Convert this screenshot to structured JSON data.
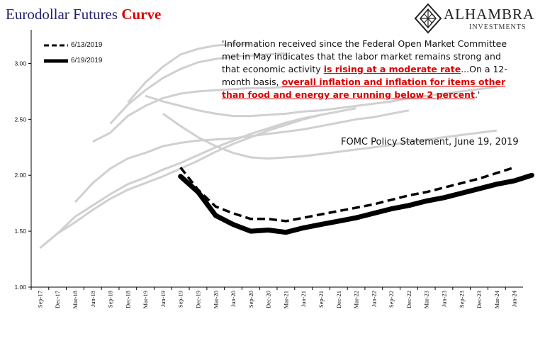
{
  "header": {
    "title_main": "Eurodollar Futures",
    "title_accent": "Curve"
  },
  "brand": {
    "name": "ALHAMBRA",
    "tagline": "INVESTMENTS",
    "logo_icon": "diamond-lattice-icon"
  },
  "annotation": {
    "quote_part1": "'Information received since the Federal Open Market Committee met in May indicates that the labor market remains strong and that economic activity ",
    "quote_highlight1": "is rising at a moderate rate",
    "quote_part2": "...On a 12-month basis, ",
    "quote_highlight2": "overall inflation and inflation for items other than food and energy are running below 2 percent",
    "quote_part3": ".'",
    "source": "FOMC Policy Statement,  June 19, 2019"
  },
  "colors": {
    "title": "#1f1f6e",
    "accent": "#d90000",
    "history": "#d0d0d0",
    "main": "#000000"
  },
  "chart_data": {
    "type": "line",
    "ylim": [
      1.0,
      3.25
    ],
    "y_ticks": [
      "1.00",
      "1.50",
      "2.00",
      "2.50",
      "3.00"
    ],
    "x_categories": [
      "Sep-17",
      "Dec-17",
      "Mar-18",
      "Jun-18",
      "Sep-18",
      "Dec-18",
      "Mar-19",
      "Jun-19",
      "Sep-19",
      "Dec-19",
      "Mar-20",
      "Jun-20",
      "Sep-20",
      "Dec-20",
      "Mar-21",
      "Jun-21",
      "Sep-21",
      "Dec-21",
      "Mar-22",
      "Jun-22",
      "Sep-22",
      "Dec-22",
      "Mar-23",
      "Jun-23",
      "Sep-23",
      "Dec-23",
      "Mar-24",
      "Jun-24"
    ],
    "legend": [
      "6/13/2019",
      "6/19/2019"
    ],
    "series": [
      {
        "name": "6/13/2019",
        "style": "dashed",
        "start_index": 8,
        "values": [
          2.07,
          1.87,
          1.72,
          1.66,
          1.61,
          1.61,
          1.59,
          1.62,
          1.65,
          1.68,
          1.71,
          1.74,
          1.78,
          1.82,
          1.85,
          1.89,
          1.93,
          1.97,
          2.02,
          2.07
        ]
      },
      {
        "name": "6/19/2019",
        "style": "solid",
        "start_index": 8,
        "values": [
          1.99,
          1.85,
          1.64,
          1.56,
          1.5,
          1.51,
          1.49,
          1.53,
          1.56,
          1.59,
          1.62,
          1.66,
          1.7,
          1.73,
          1.77,
          1.8,
          1.84,
          1.88,
          1.92,
          1.95,
          2.0
        ]
      },
      {
        "start_index": 0,
        "style": "history",
        "values": [
          1.35,
          1.48,
          1.58,
          1.69,
          1.79,
          1.87,
          1.93,
          1.99,
          2.06,
          2.13,
          2.21,
          2.28,
          2.34,
          2.4,
          2.45,
          2.5,
          2.54
        ]
      },
      {
        "start_index": 1,
        "style": "history",
        "values": [
          1.48,
          1.63,
          1.73,
          1.83,
          1.92,
          1.98,
          2.05,
          2.11,
          2.18,
          2.25,
          2.31,
          2.37,
          2.42,
          2.47,
          2.51,
          2.54,
          2.57,
          2.6
        ]
      },
      {
        "start_index": 2,
        "style": "history",
        "values": [
          1.76,
          1.93,
          2.06,
          2.15,
          2.2,
          2.26,
          2.29,
          2.31,
          2.32,
          2.33,
          2.35,
          2.37,
          2.39,
          2.41,
          2.44,
          2.47,
          2.5,
          2.52,
          2.55,
          2.58
        ]
      },
      {
        "start_index": 3,
        "style": "history",
        "values": [
          2.3,
          2.38,
          2.53,
          2.62,
          2.69,
          2.73,
          2.75,
          2.76,
          2.77,
          2.78,
          2.78,
          2.79,
          2.79,
          2.8
        ]
      },
      {
        "start_index": 4,
        "style": "history",
        "values": [
          2.46,
          2.63,
          2.76,
          2.87,
          2.95,
          3.01,
          3.04,
          3.06,
          3.07,
          3.08,
          3.09
        ]
      },
      {
        "start_index": 5,
        "style": "history",
        "values": [
          2.65,
          2.83,
          2.97,
          3.08,
          3.13,
          3.16,
          3.17,
          3.17
        ]
      },
      {
        "start_index": 6,
        "style": "history",
        "values": [
          2.71,
          2.66,
          2.62,
          2.58,
          2.55,
          2.53,
          2.53,
          2.54,
          2.55,
          2.57,
          2.58,
          2.6,
          2.62,
          2.64,
          2.66,
          2.69,
          2.71,
          2.73,
          2.75,
          2.77,
          2.79
        ]
      },
      {
        "start_index": 7,
        "style": "history",
        "values": [
          2.55,
          2.44,
          2.34,
          2.26,
          2.2,
          2.16,
          2.15,
          2.16,
          2.17,
          2.19,
          2.21,
          2.23,
          2.25,
          2.27,
          2.3,
          2.32,
          2.34,
          2.36,
          2.38,
          2.4
        ]
      }
    ]
  }
}
